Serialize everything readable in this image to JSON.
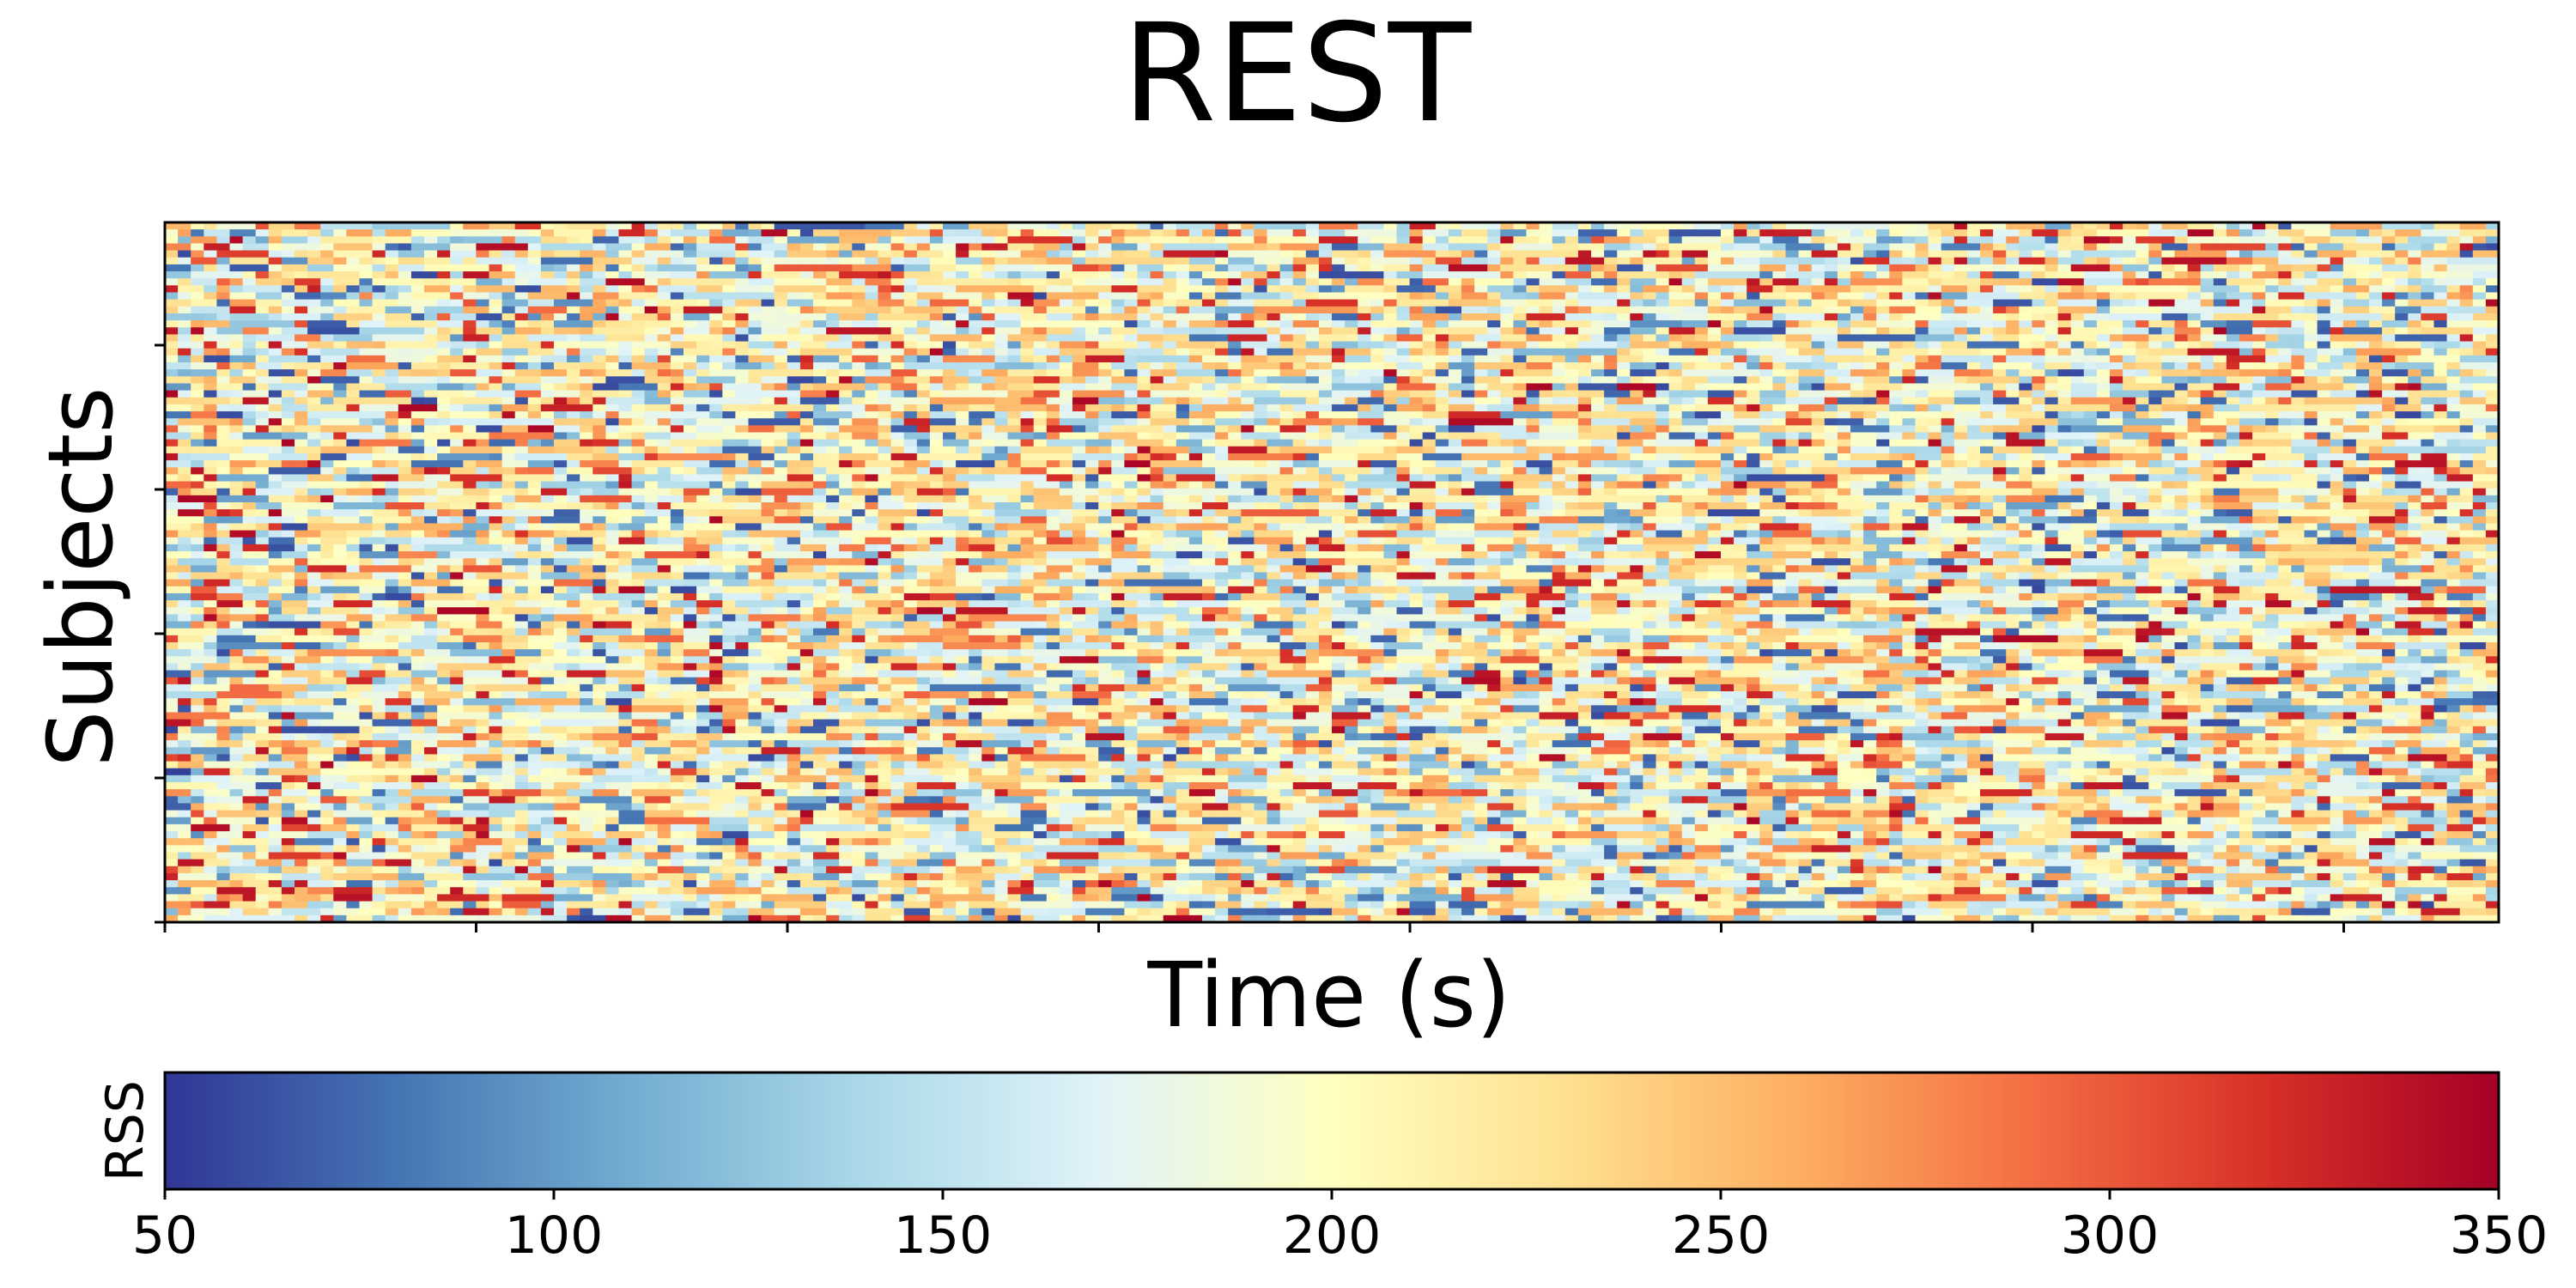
{
  "chart_data": {
    "type": "heatmap",
    "title": "REST",
    "xlabel": "Time (s)",
    "ylabel": "Subjects",
    "x_tick_count": 8,
    "y_tick_count": 5,
    "x_tick_labels": [],
    "y_tick_labels": [],
    "rows": 100,
    "columns": 180,
    "value_range": [
      50,
      350
    ],
    "colormap": "RdYlBu_r",
    "colormap_stops": [
      "#313695",
      "#4575b4",
      "#74add1",
      "#abd9e9",
      "#e0f3f8",
      "#ffffbf",
      "#fee090",
      "#fdae61",
      "#f46d43",
      "#d73027",
      "#a50026"
    ],
    "colorbar": {
      "label": "RSS",
      "orientation": "horizontal",
      "ticks": [
        50,
        100,
        150,
        200,
        250,
        300,
        350
      ],
      "tick_labels": [
        "50",
        "100",
        "150",
        "200",
        "250",
        "300",
        "350"
      ]
    },
    "grid": false
  }
}
